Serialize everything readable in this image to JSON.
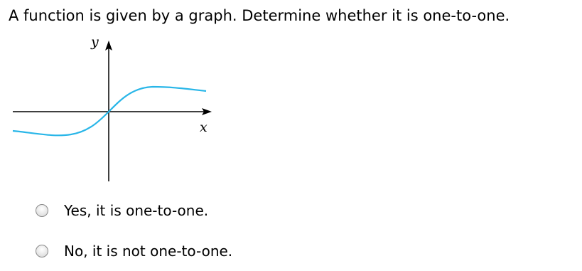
{
  "question": "A function is given by a graph. Determine whether it is one-to-one.",
  "graph": {
    "y_label": "y",
    "x_label": "x"
  },
  "options": [
    "Yes, it is one-to-one.",
    "No, it is not one-to-one."
  ]
}
